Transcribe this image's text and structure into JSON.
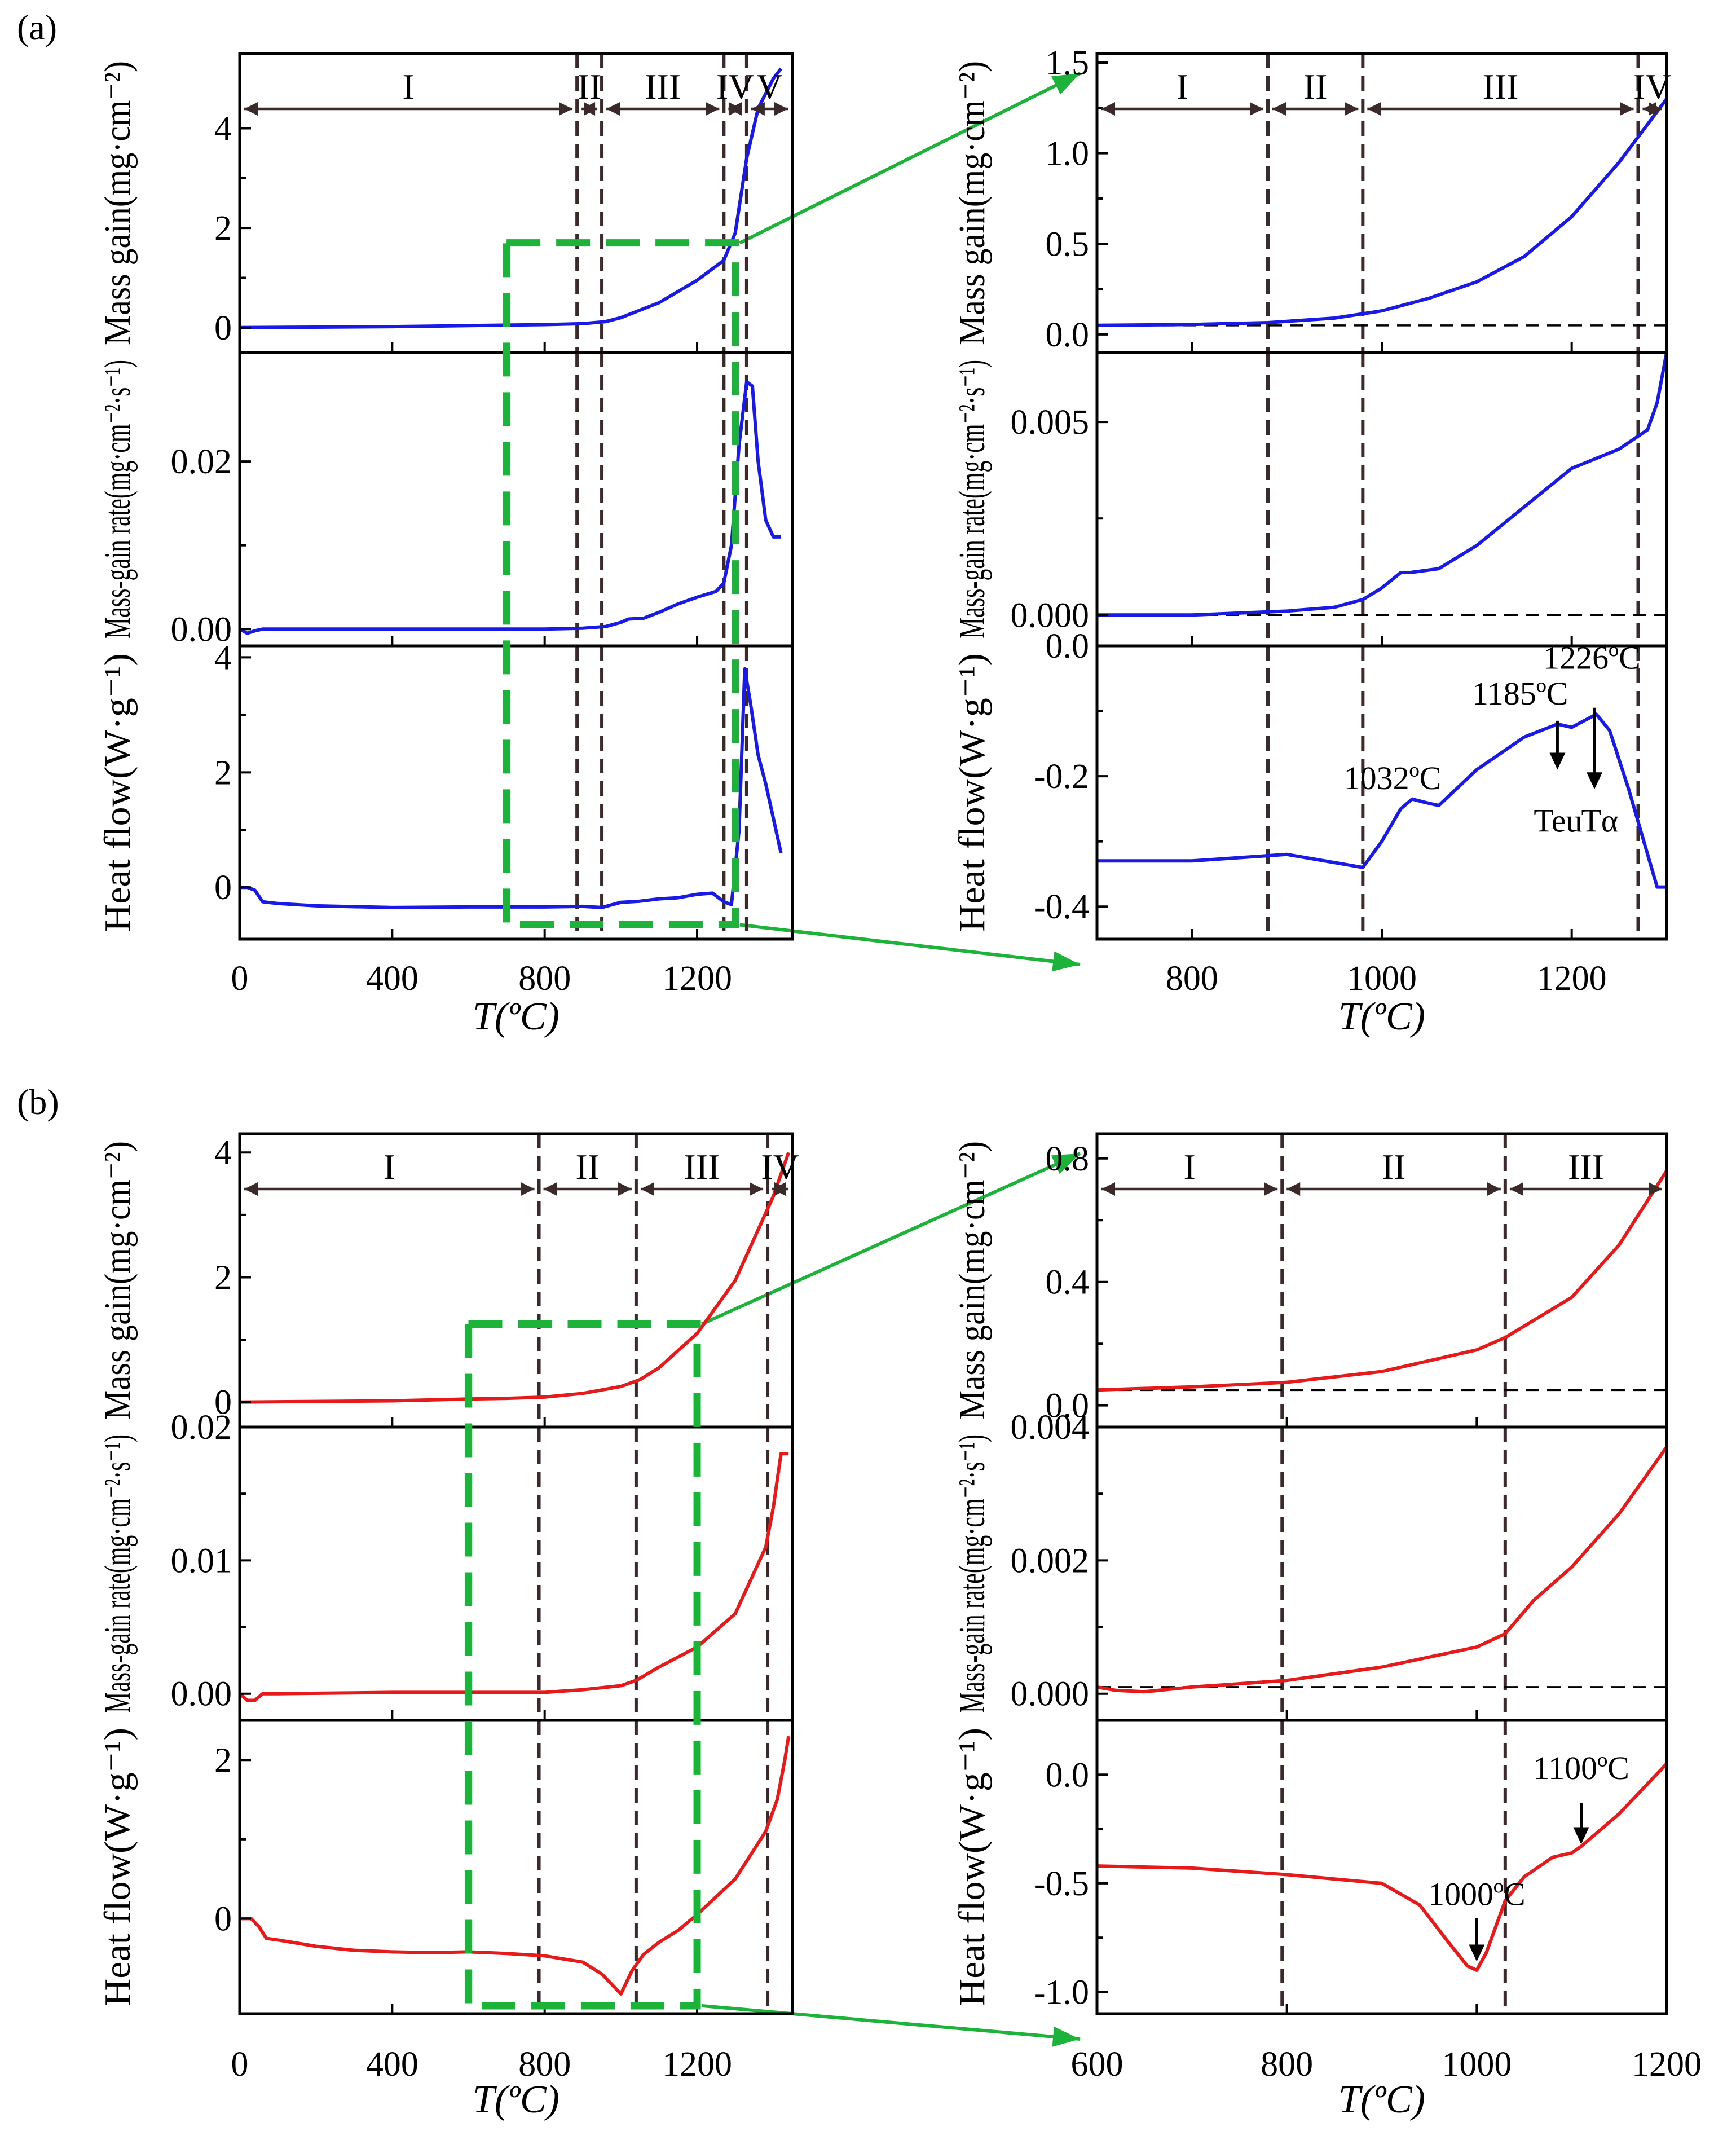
{
  "chart_data": [
    {
      "id": "a-left",
      "panel_label": "(a)",
      "type": "line",
      "series_color": "#1a1ae6",
      "xlabel": "T(ºC)",
      "xlim": [
        0,
        1450
      ],
      "xticks": [
        0,
        400,
        800,
        1200
      ],
      "region_boundaries": [
        885,
        950,
        1270,
        1330
      ],
      "regions": [
        {
          "label": "I",
          "from": 0,
          "to": 885
        },
        {
          "label": "II",
          "from": 885,
          "to": 950
        },
        {
          "label": "III",
          "from": 950,
          "to": 1270
        },
        {
          "label": "IV",
          "from": 1270,
          "to": 1330
        },
        {
          "label": "V",
          "from": 1330,
          "to": 1450
        }
      ],
      "zoom_box": {
        "x": [
          700,
          1300
        ],
        "y_top_panel": 1.7,
        "y_bottom_panel": -0.65
      },
      "subplots": [
        {
          "ylabel": "Mass gain(mg·cm⁻²)",
          "ylim": [
            -0.5,
            5.5
          ],
          "yticks": [
            0,
            2,
            4
          ],
          "ytick_labels": [
            "0",
            "2",
            "4"
          ],
          "x": [
            0,
            200,
            400,
            600,
            800,
            900,
            960,
            1000,
            1100,
            1200,
            1270,
            1300,
            1330,
            1360,
            1400,
            1420
          ],
          "y": [
            0,
            0.01,
            0.02,
            0.04,
            0.06,
            0.08,
            0.12,
            0.2,
            0.5,
            0.95,
            1.35,
            1.9,
            3.4,
            4.4,
            5.0,
            5.2
          ]
        },
        {
          "ylabel": "Mass-gain rate(mg·cm⁻²·s⁻¹)",
          "ylim": [
            -0.002,
            0.033
          ],
          "yticks": [
            0,
            0.02
          ],
          "ytick_labels": [
            "0.00",
            "0.02"
          ],
          "x": [
            0,
            20,
            40,
            60,
            100,
            400,
            800,
            900,
            960,
            1000,
            1020,
            1060,
            1100,
            1150,
            1200,
            1250,
            1270,
            1290,
            1310,
            1330,
            1345,
            1360,
            1380,
            1400,
            1420
          ],
          "y": [
            0,
            -0.0005,
            -0.0002,
            0,
            0,
            0,
            0,
            0.0001,
            0.0003,
            0.0008,
            0.0012,
            0.0013,
            0.002,
            0.003,
            0.0038,
            0.0045,
            0.0055,
            0.01,
            0.022,
            0.0295,
            0.029,
            0.02,
            0.013,
            0.011,
            0.011
          ]
        },
        {
          "ylabel": "Heat flow(W·g⁻¹)",
          "ylim": [
            -0.9,
            4.2
          ],
          "yticks": [
            0,
            2,
            4
          ],
          "ytick_labels": [
            "0",
            "2",
            "4"
          ],
          "x": [
            0,
            20,
            40,
            60,
            100,
            200,
            400,
            600,
            800,
            900,
            950,
            1000,
            1050,
            1100,
            1150,
            1200,
            1240,
            1270,
            1290,
            1310,
            1325,
            1340,
            1360,
            1380,
            1400,
            1420
          ],
          "y": [
            0,
            0,
            -0.05,
            -0.25,
            -0.28,
            -0.32,
            -0.35,
            -0.34,
            -0.34,
            -0.33,
            -0.35,
            -0.26,
            -0.24,
            -0.2,
            -0.18,
            -0.12,
            -0.1,
            -0.25,
            -0.3,
            1.0,
            3.8,
            3.2,
            2.3,
            1.8,
            1.2,
            0.6
          ]
        }
      ]
    },
    {
      "id": "a-right",
      "type": "line",
      "series_color": "#1a1ae6",
      "xlabel": "T(ºC)",
      "xlim": [
        700,
        1300
      ],
      "xticks": [
        800,
        1000,
        1200
      ],
      "region_boundaries": [
        880,
        980,
        1270
      ],
      "regions": [
        {
          "label": "I",
          "from": 700,
          "to": 880
        },
        {
          "label": "II",
          "from": 880,
          "to": 980
        },
        {
          "label": "III",
          "from": 980,
          "to": 1270
        },
        {
          "label": "IV",
          "from": 1270,
          "to": 1300
        }
      ],
      "annotations": [
        "1032ºC",
        "1185ºC",
        "1226ºC",
        "Teu",
        "Tα"
      ],
      "subplots": [
        {
          "ylabel": "Mass gain(mg·cm⁻²)",
          "ylim": [
            -0.1,
            1.55
          ],
          "yticks": [
            0,
            0.5,
            1.0,
            1.5
          ],
          "ytick_labels": [
            "0.0",
            "0.5",
            "1.0",
            "1.5"
          ],
          "baseline": 0.05,
          "x": [
            700,
            800,
            880,
            950,
            1000,
            1050,
            1100,
            1150,
            1200,
            1250,
            1300
          ],
          "y": [
            0.05,
            0.055,
            0.065,
            0.09,
            0.13,
            0.2,
            0.29,
            0.43,
            0.65,
            0.95,
            1.3
          ]
        },
        {
          "ylabel": "Mass-gain rate(mg·cm⁻²·s⁻¹)",
          "ylim": [
            -0.0008,
            0.0068
          ],
          "yticks": [
            0,
            0.005
          ],
          "ytick_labels": [
            "0.000",
            "0.005"
          ],
          "baseline": 0.0,
          "x": [
            700,
            800,
            900,
            950,
            980,
            1000,
            1020,
            1030,
            1060,
            1100,
            1150,
            1200,
            1250,
            1280,
            1290,
            1300
          ],
          "y": [
            0,
            0,
            0.0001,
            0.0002,
            0.0004,
            0.0007,
            0.0011,
            0.0011,
            0.0012,
            0.0018,
            0.0028,
            0.0038,
            0.0043,
            0.0048,
            0.0055,
            0.0068
          ]
        },
        {
          "ylabel": "Heat flow(W·g⁻¹)",
          "ylim": [
            -0.45,
            0.0
          ],
          "yticks": [
            -0.4,
            -0.2,
            0.0
          ],
          "ytick_labels": [
            "-0.4",
            "-0.2",
            "0.0"
          ],
          "x": [
            700,
            800,
            900,
            960,
            980,
            1000,
            1020,
            1032,
            1045,
            1060,
            1100,
            1150,
            1185,
            1200,
            1226,
            1240,
            1260,
            1280,
            1290,
            1300
          ],
          "y": [
            -0.33,
            -0.33,
            -0.32,
            -0.335,
            -0.34,
            -0.3,
            -0.25,
            -0.235,
            -0.24,
            -0.245,
            -0.19,
            -0.14,
            -0.12,
            -0.125,
            -0.105,
            -0.13,
            -0.22,
            -0.32,
            -0.37,
            -0.37
          ]
        }
      ]
    },
    {
      "id": "b-left",
      "panel_label": "(b)",
      "type": "line",
      "series_color": "#e61a1a",
      "xlabel": "T(ºC)",
      "xlim": [
        0,
        1450
      ],
      "xticks": [
        0,
        400,
        800,
        1200
      ],
      "region_boundaries": [
        785,
        1040,
        1385
      ],
      "regions": [
        {
          "label": "I",
          "from": 0,
          "to": 785
        },
        {
          "label": "II",
          "from": 785,
          "to": 1040
        },
        {
          "label": "III",
          "from": 1040,
          "to": 1385
        },
        {
          "label": "IV",
          "from": 1385,
          "to": 1450
        }
      ],
      "zoom_box": {
        "x": [
          600,
          1200
        ],
        "y_top_panel": 1.25,
        "y_bottom_panel": -1.1
      },
      "subplots": [
        {
          "ylabel": "Mass gain(mg·cm⁻²)",
          "ylim": [
            -0.4,
            4.3
          ],
          "yticks": [
            0,
            2,
            4
          ],
          "ytick_labels": [
            "0",
            "2",
            "4"
          ],
          "x": [
            0,
            200,
            400,
            600,
            700,
            800,
            900,
            1000,
            1050,
            1100,
            1200,
            1300,
            1400,
            1440
          ],
          "y": [
            0,
            0.01,
            0.02,
            0.05,
            0.06,
            0.08,
            0.14,
            0.25,
            0.36,
            0.55,
            1.1,
            1.95,
            3.3,
            4.0
          ]
        },
        {
          "ylabel": "Mass-gain rate(mg·cm⁻²·s⁻¹)",
          "ylim": [
            -0.002,
            0.02
          ],
          "yticks": [
            0,
            0.01,
            0.02
          ],
          "ytick_labels": [
            "0.00",
            "0.01",
            "0.02"
          ],
          "x": [
            0,
            20,
            40,
            60,
            100,
            400,
            600,
            800,
            900,
            1000,
            1040,
            1100,
            1200,
            1300,
            1380,
            1400,
            1420,
            1440
          ],
          "y": [
            0,
            -0.0005,
            -0.0005,
            0,
            0,
            0.0001,
            0.0001,
            0.0001,
            0.0003,
            0.0006,
            0.001,
            0.002,
            0.0035,
            0.006,
            0.011,
            0.014,
            0.018,
            0.018
          ]
        },
        {
          "ylabel": "Heat flow(W·g⁻¹)",
          "ylim": [
            -1.2,
            2.5
          ],
          "yticks": [
            0,
            2
          ],
          "ytick_labels": [
            "0",
            "2"
          ],
          "x": [
            0,
            30,
            50,
            70,
            100,
            200,
            300,
            400,
            500,
            600,
            700,
            800,
            900,
            950,
            1000,
            1030,
            1060,
            1100,
            1150,
            1200,
            1300,
            1380,
            1410,
            1430,
            1440
          ],
          "y": [
            0,
            0,
            -0.1,
            -0.25,
            -0.27,
            -0.35,
            -0.4,
            -0.42,
            -0.43,
            -0.42,
            -0.44,
            -0.47,
            -0.55,
            -0.7,
            -0.95,
            -0.65,
            -0.45,
            -0.3,
            -0.15,
            0.05,
            0.5,
            1.1,
            1.5,
            2.0,
            2.3
          ]
        }
      ]
    },
    {
      "id": "b-right",
      "type": "line",
      "series_color": "#e61a1a",
      "xlabel": "T(ºC)",
      "xlim": [
        600,
        1200
      ],
      "xticks": [
        600,
        800,
        1000,
        1200
      ],
      "region_boundaries": [
        795,
        1030
      ],
      "regions": [
        {
          "label": "I",
          "from": 600,
          "to": 795
        },
        {
          "label": "II",
          "from": 795,
          "to": 1030
        },
        {
          "label": "III",
          "from": 1030,
          "to": 1200
        }
      ],
      "annotations": [
        "1000ºC",
        "1100ºC"
      ],
      "subplots": [
        {
          "ylabel": "Mass gain(mg·cm⁻²)",
          "ylim": [
            -0.07,
            0.88
          ],
          "yticks": [
            0,
            0.4,
            0.8
          ],
          "ytick_labels": [
            "0.0",
            "0.4",
            "0.8"
          ],
          "baseline": 0.05,
          "x": [
            600,
            700,
            800,
            900,
            1000,
            1030,
            1100,
            1150,
            1200
          ],
          "y": [
            0.05,
            0.06,
            0.075,
            0.11,
            0.18,
            0.22,
            0.35,
            0.52,
            0.76
          ]
        },
        {
          "ylabel": "Mass-gain rate(mg·cm⁻²·s⁻¹)",
          "ylim": [
            -0.0004,
            0.004
          ],
          "yticks": [
            0,
            0.002,
            0.004
          ],
          "ytick_labels": [
            "0.000",
            "0.002",
            "0.004"
          ],
          "baseline": 0.0001,
          "x": [
            600,
            620,
            650,
            700,
            800,
            900,
            1000,
            1030,
            1060,
            1100,
            1150,
            1200
          ],
          "y": [
            0.0001,
            5e-05,
            3e-05,
            0.0001,
            0.0002,
            0.0004,
            0.0007,
            0.0009,
            0.0014,
            0.0019,
            0.0027,
            0.0037
          ]
        },
        {
          "ylabel": "Heat flow(W·g⁻¹)",
          "ylim": [
            -1.1,
            0.25
          ],
          "yticks": [
            -1.0,
            -0.5,
            0.0
          ],
          "ytick_labels": [
            "-1.0",
            "-0.5",
            "0.0"
          ],
          "x": [
            600,
            700,
            800,
            900,
            940,
            970,
            990,
            1000,
            1010,
            1030,
            1050,
            1080,
            1100,
            1110,
            1150,
            1200
          ],
          "y": [
            -0.42,
            -0.43,
            -0.46,
            -0.5,
            -0.6,
            -0.77,
            -0.88,
            -0.9,
            -0.82,
            -0.58,
            -0.47,
            -0.38,
            -0.36,
            -0.33,
            -0.18,
            0.05
          ]
        }
      ]
    }
  ]
}
